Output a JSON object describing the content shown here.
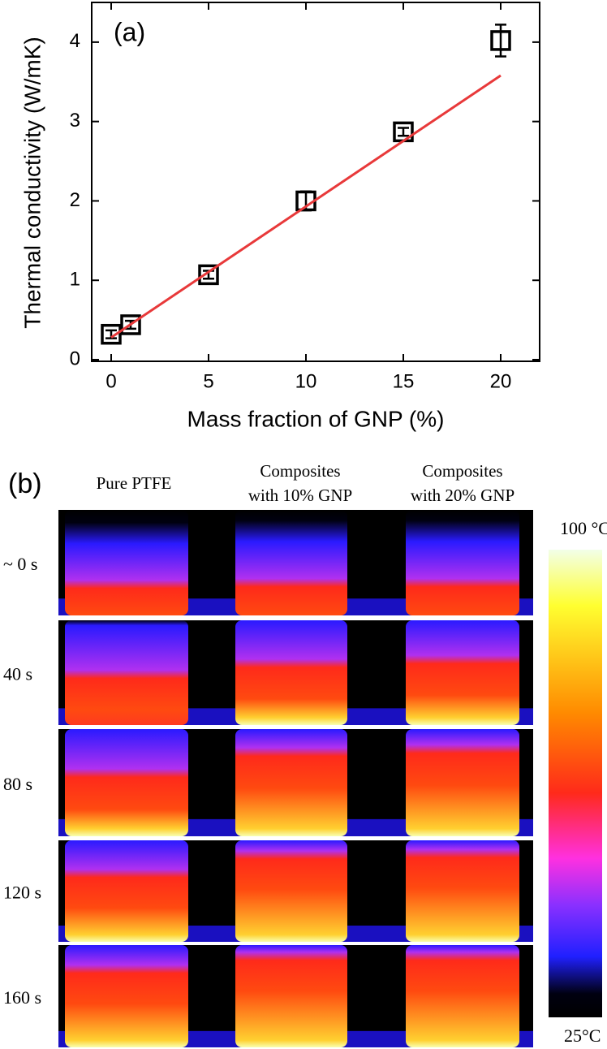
{
  "chart_data": {
    "type": "scatter",
    "label": "(a)",
    "x_label": "Mass fraction of GNP (%)",
    "y_label": "Thermal conductivity (W/mK)",
    "xlim": [
      -1,
      22
    ],
    "ylim": [
      0,
      4.5
    ],
    "xticks": [
      0,
      5,
      10,
      15,
      20
    ],
    "yticks": [
      0,
      1,
      2,
      3,
      4
    ],
    "series": [
      {
        "kind": "points",
        "color": "#000000",
        "x": [
          0,
          1,
          5,
          10,
          15,
          20
        ],
        "values": [
          0.32,
          0.44,
          1.07,
          2.0,
          2.87,
          4.02
        ],
        "errors": [
          0.05,
          0.05,
          0.05,
          0.12,
          0.05,
          0.2
        ]
      },
      {
        "kind": "fit",
        "color": "#e8393a",
        "x": [
          0,
          20
        ],
        "values": [
          0.28,
          3.58
        ]
      }
    ]
  },
  "panel_b": {
    "label": "(b)",
    "columns": [
      [
        "Pure PTFE"
      ],
      [
        "Composites",
        "with 10% GNP"
      ],
      [
        "Composites",
        "with 20% GNP"
      ]
    ],
    "rows": [
      "~ 0 s",
      "40 s",
      "80 s",
      "120 s",
      "160 s"
    ],
    "colorbar_max": "100 °C",
    "colorbar_min": "25°C"
  }
}
